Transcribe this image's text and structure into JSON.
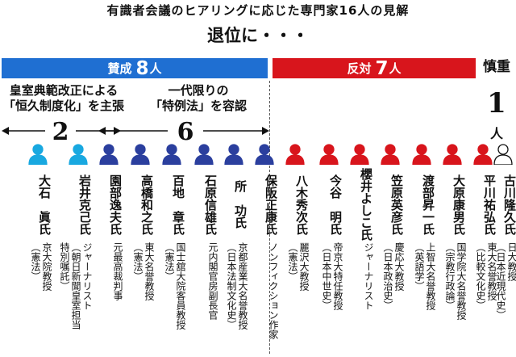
{
  "title": "有識者会議のヒアリングに応じた専門家16人の見解",
  "subtitle": "退位に・・・",
  "bands": {
    "for": {
      "label": "賛成",
      "count": "8",
      "unit": "人",
      "color": "#1f6fd2"
    },
    "against": {
      "label": "反対",
      "count": "7",
      "unit": "人",
      "color": "#d8151c"
    },
    "cautious": {
      "label": "慎重",
      "count": "1",
      "unit": "人"
    }
  },
  "groups": [
    {
      "line1": "皇室典範改正による",
      "line2": "「恒久制度化」を主張",
      "count": "2"
    },
    {
      "line1": "一代限りの",
      "line2": "「特例法」を容認",
      "count": "6"
    }
  ],
  "people": [
    {
      "stance": "for",
      "name": "大石　眞氏",
      "affil": [
        "京大院教授",
        "（憲法）"
      ]
    },
    {
      "stance": "for",
      "name": "岩井克己氏",
      "affil": [
        "ジャーナリスト",
        "（朝日新聞皇室担当",
        "特別嘱託）"
      ]
    },
    {
      "stance": "for",
      "name": "園部逸夫氏",
      "affil": [
        "元最高裁判事"
      ]
    },
    {
      "stance": "for",
      "name": "高橋和之氏",
      "affil": [
        "東大名誉教授",
        "（憲法）"
      ]
    },
    {
      "stance": "for",
      "name": "百地　章氏",
      "affil": [
        "国士舘大院客員教授",
        "（憲法）"
      ]
    },
    {
      "stance": "for",
      "name": "石原信雄氏",
      "affil": [
        "元内閣官房副長官"
      ]
    },
    {
      "stance": "for",
      "name": "所　功氏",
      "affil": [
        "京都産業大名誉教授",
        "（日本法制文化史）"
      ]
    },
    {
      "stance": "for",
      "name": "保阪正康氏",
      "affil": [
        "ノンフィクション作家"
      ]
    },
    {
      "stance": "against",
      "name": "八木秀次氏",
      "affil": [
        "麗沢大教授",
        "（憲法）"
      ]
    },
    {
      "stance": "against",
      "name": "今谷　明氏",
      "affil": [
        "帝京大特任教授",
        "（日本中世史）"
      ]
    },
    {
      "stance": "against",
      "name": "櫻井よしこ氏",
      "affil": [
        "ジャーナリスト"
      ]
    },
    {
      "stance": "against",
      "name": "笠原英彦氏",
      "affil": [
        "慶応大教授",
        "（日本政治史）"
      ]
    },
    {
      "stance": "against",
      "name": "渡部昇一氏",
      "affil": [
        "上智大名誉教授",
        "（英語学）"
      ]
    },
    {
      "stance": "against",
      "name": "大原康男氏",
      "affil": [
        "国学院大名誉教授",
        "（宗教行政論）"
      ]
    },
    {
      "stance": "against",
      "name": "平川祐弘氏",
      "affil": [
        "東大名誉教授",
        "（比較文化史）"
      ]
    },
    {
      "stance": "cautious",
      "name": "古川隆久氏",
      "affil": [
        "日大教授",
        "（日本近現代史）"
      ]
    }
  ],
  "icon_colors": {
    "group1": "#18a8e0",
    "group2": "#2b3f9e",
    "against": "#d8151c",
    "cautious": "#ffffff"
  }
}
